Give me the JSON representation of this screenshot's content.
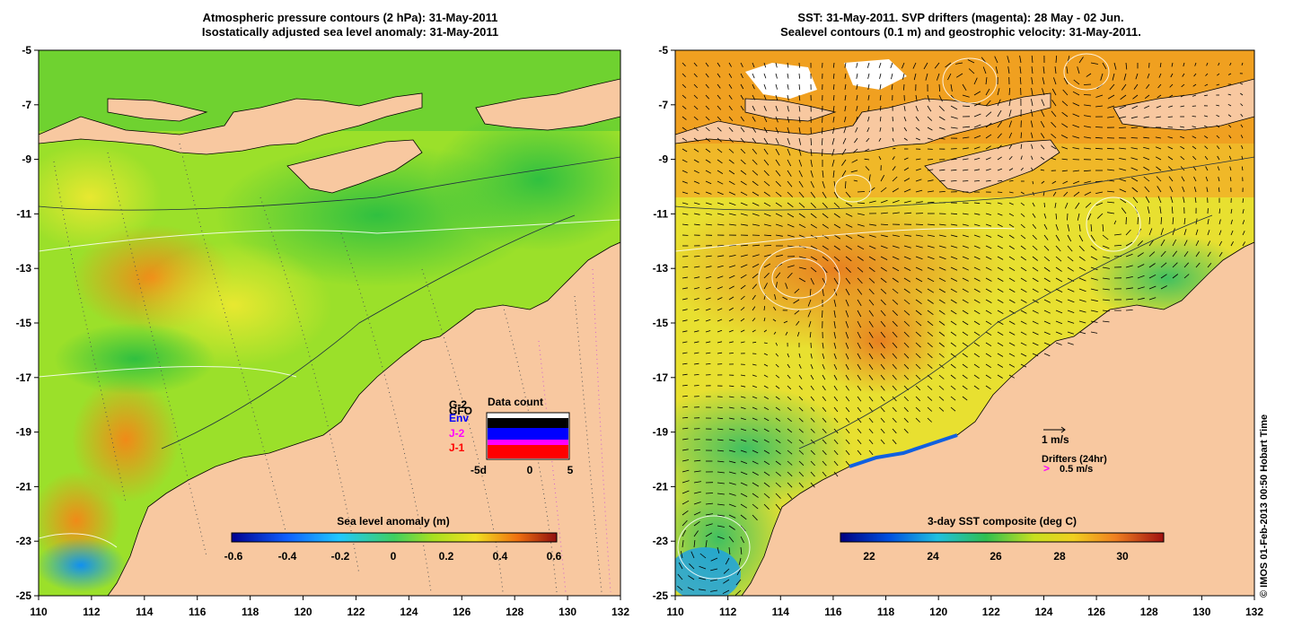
{
  "left_panel": {
    "title_line1": "Atmospheric pressure contours (2 hPa): 31-May-2011",
    "title_line2": "Isostatically adjusted sea level anomaly: 31-May-2011",
    "colorbar": {
      "title": "Sea level anomaly (m)",
      "ticks": [
        "-0.6",
        "-0.4",
        "-0.2",
        "0",
        "0.2",
        "0.4",
        "0.6"
      ],
      "range": [
        -0.6,
        0.6
      ]
    },
    "data_count": {
      "title": "Data count",
      "legend": [
        "G-2",
        "GFO",
        "Env",
        "J-2",
        "J-1"
      ],
      "legend_colors": [
        "#000000",
        "#000000",
        "#0000ff",
        "#ff00ff",
        "#ff0000"
      ],
      "x_ticks": [
        "-5d",
        "0",
        "5"
      ]
    }
  },
  "right_panel": {
    "title_line1": "SST: 31-May-2011. SVP drifters (magenta): 28 May - 02 Jun.",
    "title_line2": "Sealevel contours (0.1 m) and geostrophic velocity: 31-May-2011.",
    "colorbar": {
      "title": "3-day SST composite (deg C)",
      "ticks": [
        "22",
        "24",
        "26",
        "28",
        "30"
      ],
      "range": [
        21,
        31
      ]
    },
    "legend": {
      "velocity": "1 m/s",
      "drifters_title": "Drifters (24hr)",
      "drifter_speed": "0.5 m/s",
      "drifter_symbol": ">"
    }
  },
  "axes": {
    "lon_ticks": [
      "110",
      "112",
      "114",
      "116",
      "118",
      "120",
      "122",
      "124",
      "126",
      "128",
      "130",
      "132"
    ],
    "lat_ticks": [
      "-5",
      "-7",
      "-9",
      "-11",
      "-13",
      "-15",
      "-17",
      "-19",
      "-21",
      "-23",
      "-25"
    ],
    "lon_range": [
      110,
      132
    ],
    "lat_range": [
      -25,
      -5
    ]
  },
  "credit": "© IMOS 01-Feb-2013 00:50 Hobart Time",
  "colors": {
    "land": "#f8c8a0",
    "sla_bg": "#9be02a",
    "sst_bg": "#e8e030",
    "sst_north": "#f0a020"
  }
}
